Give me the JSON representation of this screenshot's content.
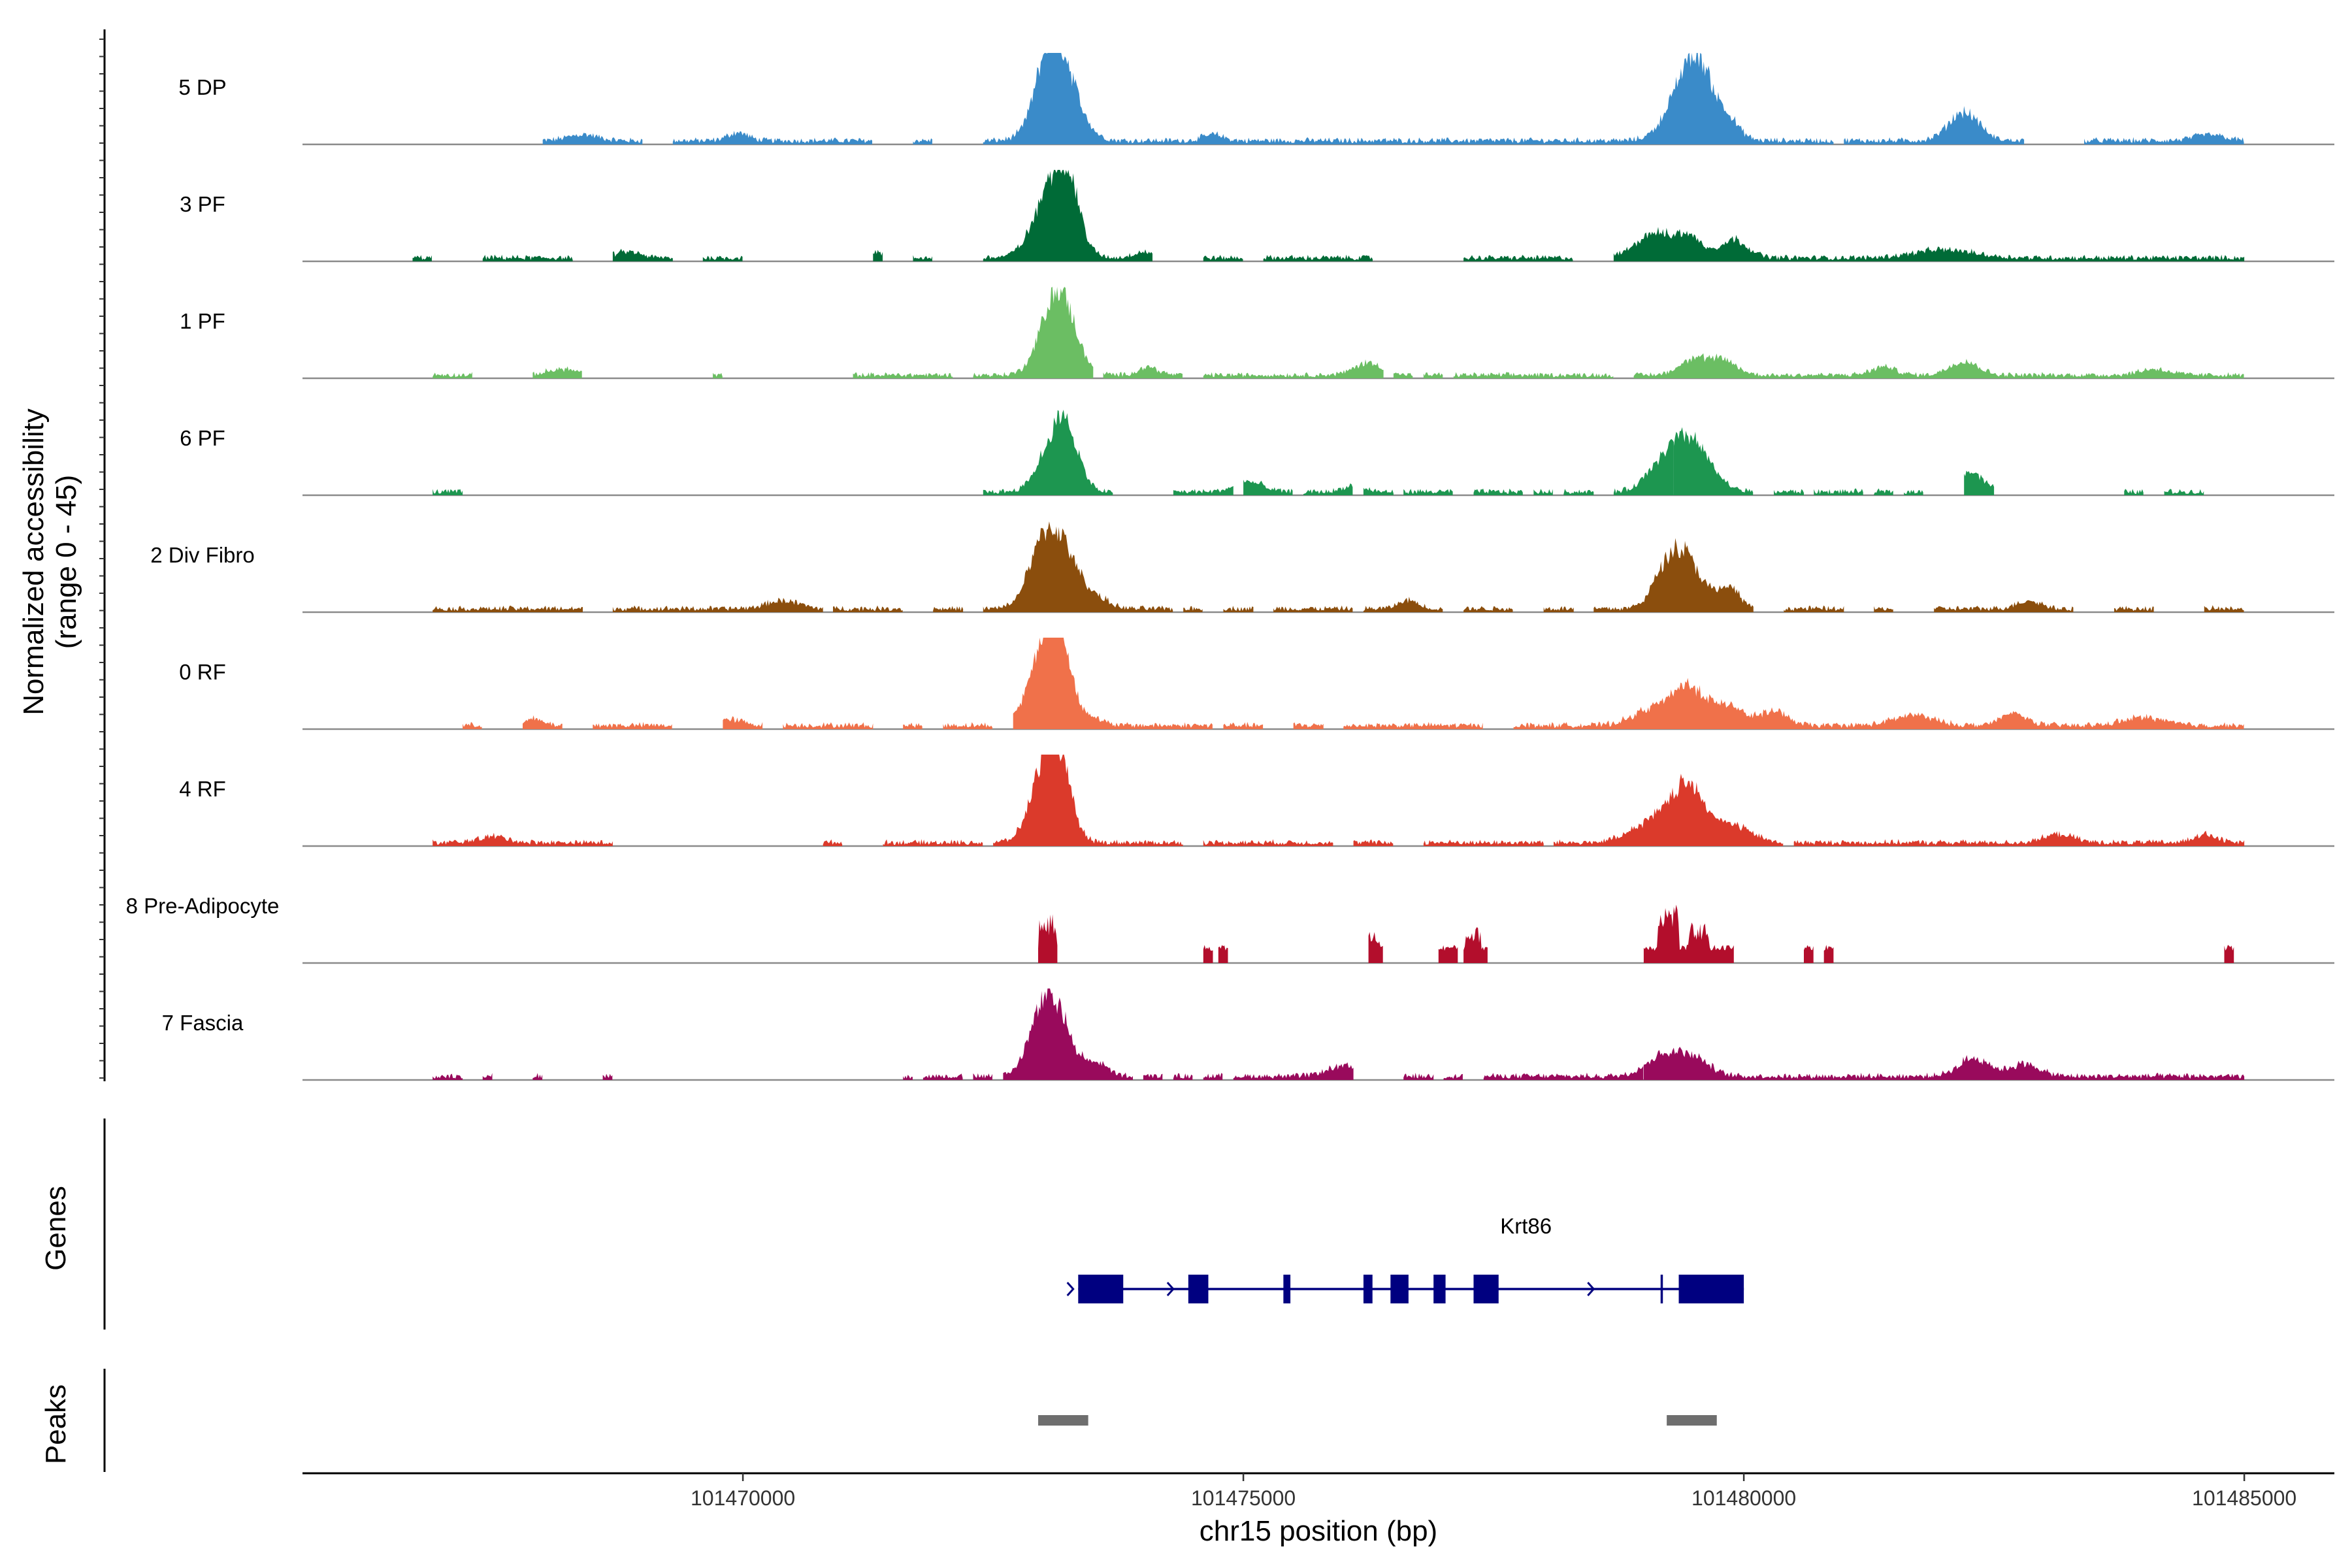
{
  "chart_data": {
    "type": "area",
    "title": "",
    "ylabel": "Normalized accessibility",
    "ylabel_range": "(range 0 - 45)",
    "ylim": [
      0,
      45
    ],
    "xlabel": "chr15 position (bp)",
    "xlim": [
      101465600,
      101485900
    ],
    "x_ticks": [
      101470000,
      101475000,
      101480000,
      101485000
    ],
    "x_tick_labels": [
      "101470000",
      "101475000",
      "101480000",
      "101485000"
    ],
    "data_range": [
      101466000,
      101485000
    ],
    "tracks": [
      {
        "name": "5 DP",
        "color": "#3A8BC9",
        "segments": [
          [
            101468000,
            101469000
          ],
          [
            101469300,
            101471300
          ],
          [
            101471700,
            101471900
          ],
          [
            101472400,
            101480900
          ],
          [
            101481000,
            101482800
          ],
          [
            101483400,
            101485000
          ]
        ],
        "peaks": [
          [
            101473150,
            40,
            180
          ],
          [
            101473050,
            16,
            120
          ],
          [
            101479400,
            22,
            180
          ],
          [
            101479550,
            26,
            140
          ],
          [
            101479830,
            10,
            120
          ],
          [
            101482200,
            14,
            150
          ],
          [
            101469950,
            4,
            100
          ],
          [
            101468400,
            3,
            150
          ],
          [
            101474700,
            3,
            100
          ],
          [
            101484650,
            3,
            150
          ]
        ],
        "noise": 1.6
      },
      {
        "name": "3 PF",
        "color": "#006B37",
        "segments": [
          [
            101466700,
            101466900
          ],
          [
            101467400,
            101468300
          ],
          [
            101468700,
            101469300
          ],
          [
            101469600,
            101470000
          ],
          [
            101471300,
            101471400
          ],
          [
            101471700,
            101471900
          ],
          [
            101472400,
            101474100
          ],
          [
            101474600,
            101475000
          ],
          [
            101475200,
            101476300
          ],
          [
            101477200,
            101478300
          ],
          [
            101478700,
            101485000
          ]
        ],
        "peaks": [
          [
            101473100,
            34,
            180
          ],
          [
            101473250,
            22,
            110
          ],
          [
            101479100,
            12,
            180
          ],
          [
            101479450,
            10,
            130
          ],
          [
            101479900,
            9,
            140
          ],
          [
            101482000,
            4,
            300
          ],
          [
            101468850,
            3,
            120
          ],
          [
            101471300,
            3,
            80
          ],
          [
            101474000,
            3,
            100
          ]
        ],
        "noise": 1.5
      },
      {
        "name": "1 PF",
        "color": "#6BBE63",
        "segments": [
          [
            101466900,
            101467300
          ],
          [
            101467900,
            101468400
          ],
          [
            101469700,
            101469800
          ],
          [
            101471100,
            101472100
          ],
          [
            101472300,
            101473500
          ],
          [
            101473600,
            101474400
          ],
          [
            101474600,
            101476400
          ],
          [
            101476500,
            101476700
          ],
          [
            101476800,
            101477000
          ],
          [
            101477100,
            101478700
          ],
          [
            101478900,
            101485000
          ]
        ],
        "peaks": [
          [
            101473150,
            42,
            160
          ],
          [
            101476250,
            6,
            140
          ],
          [
            101479500,
            8,
            140
          ],
          [
            101479800,
            7,
            130
          ],
          [
            101482200,
            7,
            140
          ],
          [
            101468200,
            3,
            150
          ],
          [
            101474050,
            4,
            100
          ],
          [
            101481400,
            4,
            120
          ],
          [
            101484100,
            3,
            150
          ]
        ],
        "noise": 1.4
      },
      {
        "name": "6 PF",
        "color": "#1D9650",
        "segments": [
          [
            101466900,
            101467200
          ],
          [
            101472400,
            101473700
          ],
          [
            101474300,
            101474900
          ],
          [
            101475000,
            101475500
          ],
          [
            101475600,
            101476100
          ],
          [
            101476200,
            101476500
          ],
          [
            101476600,
            101477100
          ],
          [
            101477300,
            101477800
          ],
          [
            101477900,
            101478100
          ],
          [
            101478200,
            101478500
          ],
          [
            101478700,
            101479300
          ],
          [
            101479300,
            101480100
          ],
          [
            101480300,
            101480600
          ],
          [
            101480700,
            101481200
          ],
          [
            101481300,
            101481500
          ],
          [
            101481600,
            101481800
          ],
          [
            101482200,
            101482500
          ],
          [
            101483800,
            101484000
          ],
          [
            101484200,
            101484600
          ]
        ],
        "peaks": [
          [
            101473100,
            22,
            150
          ],
          [
            101473250,
            20,
            120
          ],
          [
            101479450,
            26,
            200
          ],
          [
            101479150,
            8,
            150
          ],
          [
            101482250,
            10,
            140
          ],
          [
            101475050,
            5,
            140
          ],
          [
            101476100,
            3,
            100
          ]
        ],
        "noise": 1.5
      },
      {
        "name": "2 Div Fibro",
        "color": "#8B4E0D",
        "segments": [
          [
            101466900,
            101468400
          ],
          [
            101468700,
            101470800
          ],
          [
            101470900,
            101471600
          ],
          [
            101471900,
            101472200
          ],
          [
            101472400,
            101474300
          ],
          [
            101474400,
            101474600
          ],
          [
            101474800,
            101475100
          ],
          [
            101475300,
            101476100
          ],
          [
            101476200,
            101477000
          ],
          [
            101477200,
            101477700
          ],
          [
            101478000,
            101478300
          ],
          [
            101478500,
            101480100
          ],
          [
            101480400,
            101481000
          ],
          [
            101481300,
            101481500
          ],
          [
            101481900,
            101483300
          ],
          [
            101483700,
            101484100
          ],
          [
            101484600,
            101485000
          ]
        ],
        "peaks": [
          [
            101473150,
            34,
            180
          ],
          [
            101472950,
            14,
            130
          ],
          [
            101479400,
            26,
            170
          ],
          [
            101479200,
            10,
            130
          ],
          [
            101479850,
            10,
            110
          ],
          [
            101470400,
            4,
            160
          ],
          [
            101473550,
            4,
            120
          ],
          [
            101476650,
            4,
            100
          ],
          [
            101482850,
            4,
            120
          ]
        ],
        "noise": 1.5
      },
      {
        "name": "0 RF",
        "color": "#F0714A",
        "segments": [
          [
            101467200,
            101467400
          ],
          [
            101467800,
            101468200
          ],
          [
            101468500,
            101469300
          ],
          [
            101469800,
            101470200
          ],
          [
            101470400,
            101471300
          ],
          [
            101471600,
            101471800
          ],
          [
            101472000,
            101472500
          ],
          [
            101472700,
            101474700
          ],
          [
            101474800,
            101475200
          ],
          [
            101475500,
            101475800
          ],
          [
            101476000,
            101477400
          ],
          [
            101477700,
            101485000
          ]
        ],
        "peaks": [
          [
            101473050,
            40,
            170
          ],
          [
            101473150,
            20,
            120
          ],
          [
            101479450,
            18,
            160
          ],
          [
            101479100,
            8,
            200
          ],
          [
            101479850,
            10,
            150
          ],
          [
            101480300,
            7,
            130
          ],
          [
            101481700,
            5,
            200
          ],
          [
            101482700,
            6,
            130
          ],
          [
            101484000,
            4,
            200
          ],
          [
            101467900,
            3,
            100
          ],
          [
            101469850,
            3,
            150
          ],
          [
            101473500,
            3,
            100
          ]
        ],
        "noise": 1.6
      },
      {
        "name": "4 RF",
        "color": "#DB3A2B",
        "segments": [
          [
            101466900,
            101468700
          ],
          [
            101470800,
            101471000
          ],
          [
            101471400,
            101472400
          ],
          [
            101472500,
            101474400
          ],
          [
            101474600,
            101475900
          ],
          [
            101476100,
            101476500
          ],
          [
            101476800,
            101478000
          ],
          [
            101478100,
            101480400
          ],
          [
            101480500,
            101485000
          ]
        ],
        "peaks": [
          [
            101473050,
            30,
            160
          ],
          [
            101473150,
            24,
            120
          ],
          [
            101479450,
            26,
            170
          ],
          [
            101479100,
            10,
            220
          ],
          [
            101479900,
            8,
            180
          ],
          [
            101472950,
            6,
            100
          ],
          [
            101483150,
            4,
            150
          ],
          [
            101484600,
            4,
            120
          ],
          [
            101467500,
            3,
            150
          ]
        ],
        "noise": 1.5
      },
      {
        "name": "8 Pre-Adipocyte",
        "color": "#B30E2C",
        "segments": [
          [
            101472950,
            101473150
          ],
          [
            101474600,
            101474700
          ],
          [
            101474750,
            101474850
          ],
          [
            101476250,
            101476400
          ],
          [
            101476950,
            101477150
          ],
          [
            101477200,
            101477450
          ],
          [
            101479000,
            101479900
          ],
          [
            101480600,
            101480700
          ],
          [
            101480800,
            101480900
          ],
          [
            101484800,
            101484900
          ]
        ],
        "peaks": [
          [
            101473050,
            24,
            90
          ],
          [
            101476300,
            16,
            70
          ],
          [
            101477300,
            18,
            80
          ],
          [
            101479250,
            30,
            110
          ],
          [
            101479550,
            20,
            100
          ]
        ],
        "noise": 0,
        "blocky": true
      },
      {
        "name": "7 Fascia",
        "color": "#990A5C",
        "segments": [
          [
            101466900,
            101467200
          ],
          [
            101467400,
            101467500
          ],
          [
            101467900,
            101468000
          ],
          [
            101468600,
            101468700
          ],
          [
            101471600,
            101471700
          ],
          [
            101471800,
            101472200
          ],
          [
            101472300,
            101472500
          ],
          [
            101472600,
            101473900
          ],
          [
            101474000,
            101474200
          ],
          [
            101474300,
            101474500
          ],
          [
            101474600,
            101474800
          ],
          [
            101474900,
            101476100
          ],
          [
            101476600,
            101476900
          ],
          [
            101477000,
            101477200
          ],
          [
            101477400,
            101479000
          ],
          [
            101479000,
            101485000
          ]
        ],
        "peaks": [
          [
            101473100,
            34,
            170
          ],
          [
            101472950,
            10,
            120
          ],
          [
            101473550,
            6,
            100
          ],
          [
            101479200,
            10,
            180
          ],
          [
            101479500,
            8,
            160
          ],
          [
            101482300,
            9,
            150
          ],
          [
            101476000,
            5,
            160
          ],
          [
            101482800,
            6,
            150
          ]
        ],
        "noise": 1.6
      }
    ],
    "genes": {
      "title": "Genes",
      "name": "Krt86",
      "color": "#000080",
      "strand": "+",
      "start": 101473350,
      "end": 101480000,
      "exons": [
        [
          101473350,
          101473800
        ],
        [
          101474450,
          101474650
        ],
        [
          101475400,
          101475470
        ],
        [
          101476200,
          101476290
        ],
        [
          101476470,
          101476650
        ],
        [
          101476900,
          101477020
        ],
        [
          101477300,
          101477550
        ],
        [
          101479350,
          101480000
        ]
      ],
      "extra_marks": [
        101479180
      ],
      "arrows": [
        101473300,
        101474300,
        101476550,
        101478500
      ]
    },
    "peaks": {
      "title": "Peaks",
      "color": "#6E6E6E",
      "regions": [
        [
          101472950,
          101473450
        ],
        [
          101479230,
          101479730
        ]
      ]
    }
  }
}
